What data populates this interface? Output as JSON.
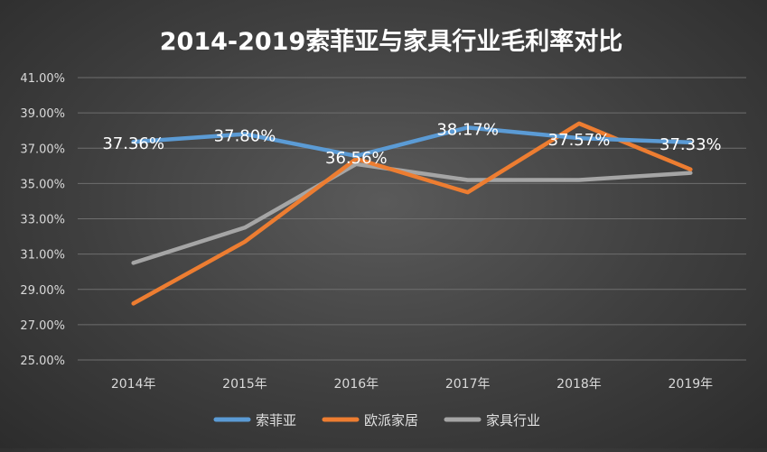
{
  "chart_data": {
    "type": "line",
    "title": "2014-2019索菲亚与家具行业毛利率对比",
    "categories": [
      "2014年",
      "2015年",
      "2016年",
      "2017年",
      "2018年",
      "2019年"
    ],
    "ylim": [
      25,
      41
    ],
    "yticks": [
      "41.00%",
      "39.00%",
      "37.00%",
      "35.00%",
      "33.00%",
      "31.00%",
      "29.00%",
      "27.00%",
      "25.00%"
    ],
    "ytick_values": [
      41,
      39,
      37,
      35,
      33,
      31,
      29,
      27,
      25
    ],
    "series": [
      {
        "name": "索菲亚",
        "color": "#5b9bd5",
        "values": [
          37.36,
          37.8,
          36.56,
          38.17,
          37.57,
          37.33
        ],
        "labels": [
          "37.36%",
          "37.80%",
          "36.56%",
          "38.17%",
          "37.57%",
          "37.33%"
        ]
      },
      {
        "name": "欧派家居",
        "color": "#ed7d31",
        "values": [
          28.2,
          31.7,
          36.4,
          34.5,
          38.4,
          35.8
        ]
      },
      {
        "name": "家具行业",
        "color": "#a5a5a5",
        "values": [
          30.5,
          32.5,
          36.1,
          35.2,
          35.2,
          35.6
        ]
      }
    ],
    "grid": true,
    "legend": "bottom"
  }
}
